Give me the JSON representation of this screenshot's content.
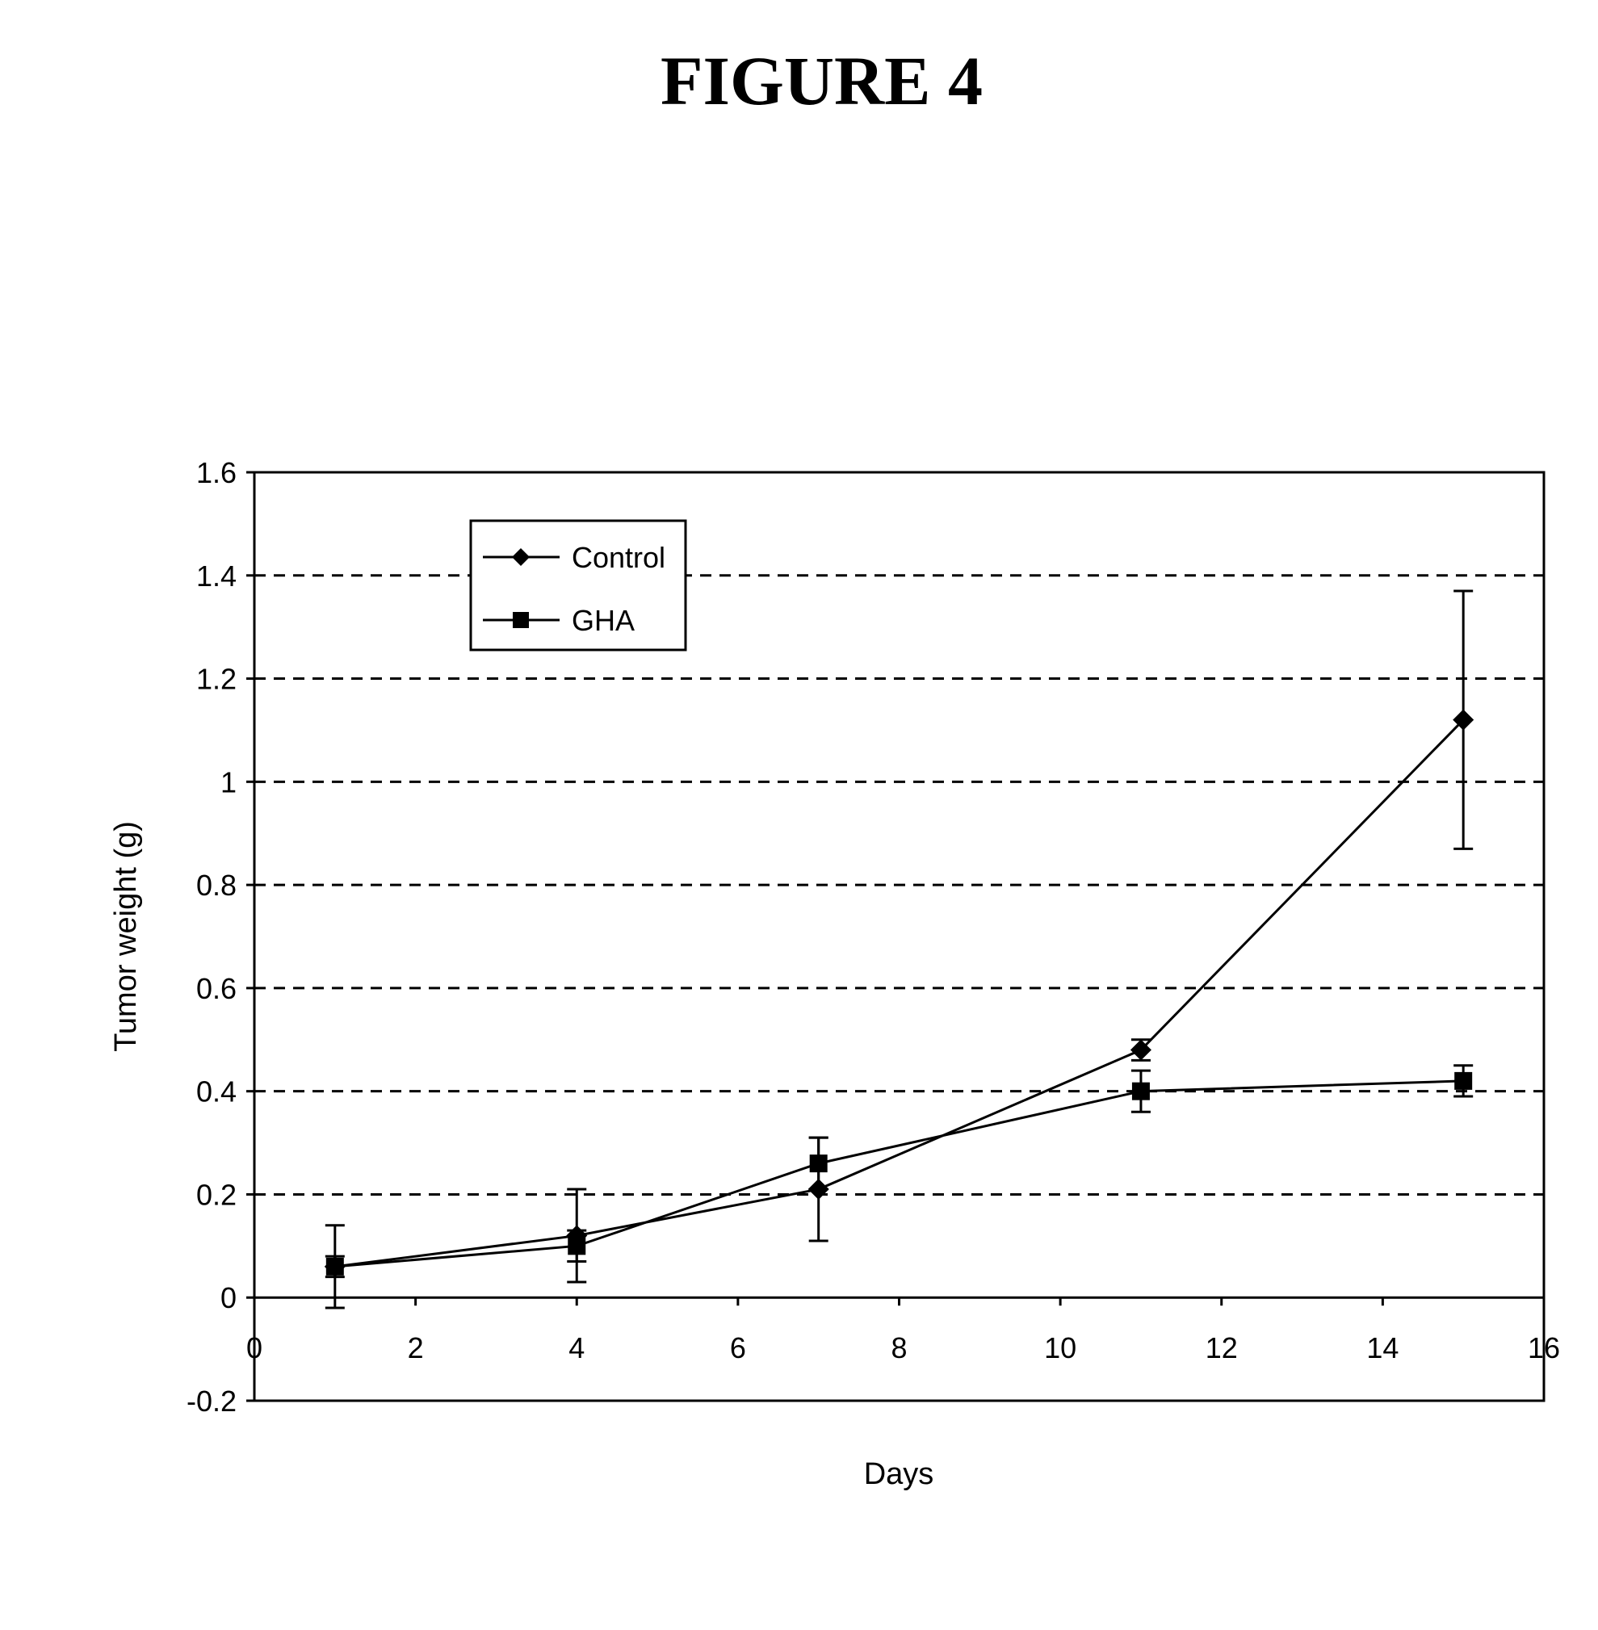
{
  "figure_title": "FIGURE 4",
  "chart_data": {
    "type": "line",
    "xlabel": "Days",
    "ylabel": "Tumor weight (g)",
    "xlim": [
      0,
      16
    ],
    "ylim": [
      -0.2,
      1.6
    ],
    "x_ticks": [
      "0",
      "2",
      "4",
      "6",
      "8",
      "10",
      "12",
      "14",
      "16"
    ],
    "y_ticks": [
      "-0.2",
      "0",
      "0.2",
      "0.4",
      "0.6",
      "0.8",
      "1",
      "1.2",
      "1.4",
      "1.6"
    ],
    "grid": "horizontal dashed",
    "legend_position": "top-left",
    "series": [
      {
        "name": "Control",
        "marker": "diamond",
        "x": [
          1,
          4,
          7,
          11,
          15
        ],
        "y": [
          0.06,
          0.12,
          0.21,
          0.48,
          1.12
        ],
        "error": [
          0.08,
          0.09,
          0.1,
          0.02,
          0.25
        ]
      },
      {
        "name": "GHA",
        "marker": "square",
        "x": [
          1,
          4,
          7,
          11,
          15
        ],
        "y": [
          0.06,
          0.1,
          0.26,
          0.4,
          0.42
        ],
        "error": [
          0.02,
          0.03,
          0.05,
          0.04,
          0.03
        ]
      }
    ]
  }
}
